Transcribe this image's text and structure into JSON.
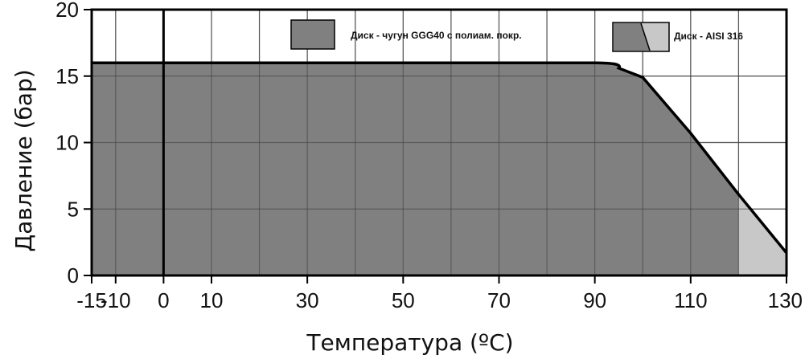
{
  "chart_data": {
    "type": "area",
    "xlabel": "Температура (ºC)",
    "ylabel": "Давление (бар)",
    "xlim": [
      -15,
      130
    ],
    "ylim": [
      0,
      20
    ],
    "x_ticks": [
      -15,
      -10,
      0,
      10,
      30,
      50,
      70,
      90,
      110,
      130
    ],
    "y_ticks": [
      0,
      5,
      10,
      15,
      20
    ],
    "grid": true,
    "legend_position": "top-right",
    "colors": {
      "cast_iron": "#808080",
      "aisi": "#c8c8c8",
      "curve": "#000000"
    },
    "series": [
      {
        "name": "Диск - чугун GGG40 с полиам. покр.",
        "x": [
          -15,
          90,
          95,
          100,
          110,
          120
        ],
        "y": [
          16,
          16,
          15.6,
          14.9,
          10.7,
          6.1
        ]
      },
      {
        "name": "Диск - AISI 316",
        "x": [
          -15,
          90,
          95,
          100,
          110,
          120,
          130
        ],
        "y": [
          16,
          16,
          15.6,
          14.9,
          10.7,
          6.1,
          1.7
        ]
      }
    ]
  }
}
